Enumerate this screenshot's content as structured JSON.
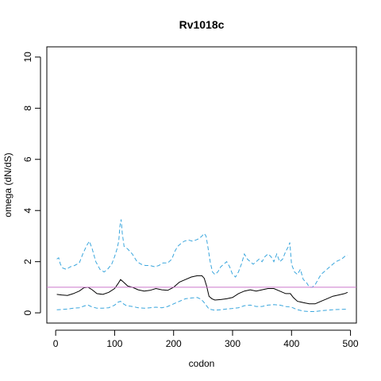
{
  "chart_data": {
    "type": "line",
    "title": "Rv1018c",
    "xlabel": "codon",
    "ylabel": "omega (dN/dS)",
    "xlim": [
      -15,
      510
    ],
    "ylim": [
      -0.4,
      10.4
    ],
    "xticks": [
      0,
      100,
      200,
      300,
      400,
      500
    ],
    "yticks": [
      0,
      2,
      4,
      6,
      8,
      10
    ],
    "grid": false,
    "legend": "none",
    "reference_line": {
      "y": 1,
      "color": "#cc77cc"
    },
    "series": [
      {
        "role": "upper",
        "color": "#3aa6dd",
        "dash": "dashed",
        "x": [
          2,
          5,
          8,
          12,
          18,
          25,
          32,
          40,
          46,
          52,
          57,
          62,
          68,
          75,
          82,
          88,
          95,
          100,
          104,
          107,
          109,
          111,
          113,
          116,
          122,
          130,
          138,
          145,
          152,
          160,
          168,
          175,
          182,
          190,
          197,
          202,
          207,
          212,
          218,
          225,
          232,
          238,
          243,
          248,
          252,
          255,
          258,
          262,
          266,
          270,
          275,
          280,
          285,
          290,
          295,
          300,
          305,
          310,
          315,
          320,
          325,
          330,
          335,
          340,
          345,
          350,
          355,
          360,
          365,
          370,
          375,
          380,
          385,
          390,
          395,
          397,
          400,
          405,
          410,
          415,
          420,
          425,
          430,
          435,
          440,
          445,
          450,
          455,
          460,
          465,
          470,
          475,
          480,
          485,
          490,
          495
        ],
        "y": [
          2.1,
          2.15,
          1.9,
          1.75,
          1.7,
          1.8,
          1.85,
          1.95,
          2.3,
          2.6,
          2.8,
          2.5,
          2.0,
          1.7,
          1.6,
          1.7,
          1.9,
          2.2,
          2.5,
          2.8,
          3.4,
          3.65,
          3.1,
          2.6,
          2.5,
          2.3,
          2.0,
          1.9,
          1.85,
          1.85,
          1.8,
          1.85,
          1.95,
          1.95,
          2.1,
          2.4,
          2.6,
          2.7,
          2.8,
          2.85,
          2.8,
          2.85,
          2.9,
          3.0,
          3.1,
          3.0,
          2.6,
          2.0,
          1.6,
          1.5,
          1.6,
          1.8,
          1.9,
          2.0,
          1.8,
          1.5,
          1.4,
          1.6,
          1.9,
          2.3,
          2.1,
          2.0,
          1.9,
          2.0,
          2.1,
          2.0,
          2.2,
          2.3,
          2.2,
          2.0,
          2.3,
          2.0,
          2.1,
          2.4,
          2.6,
          2.75,
          1.9,
          1.6,
          1.5,
          1.7,
          1.3,
          1.2,
          1.0,
          1.0,
          1.1,
          1.3,
          1.5,
          1.6,
          1.7,
          1.8,
          1.9,
          2.0,
          2.05,
          2.1,
          2.2,
          2.25
        ]
      },
      {
        "role": "estimate",
        "color": "#000000",
        "dash": "solid",
        "x": [
          2,
          10,
          20,
          30,
          40,
          48,
          55,
          62,
          70,
          80,
          90,
          100,
          106,
          110,
          115,
          122,
          130,
          140,
          150,
          160,
          170,
          180,
          190,
          200,
          210,
          220,
          230,
          240,
          248,
          252,
          256,
          260,
          265,
          270,
          280,
          290,
          300,
          310,
          320,
          330,
          340,
          350,
          360,
          370,
          380,
          390,
          398,
          403,
          410,
          420,
          430,
          440,
          450,
          460,
          470,
          480,
          490,
          495
        ],
        "y": [
          0.72,
          0.7,
          0.68,
          0.75,
          0.85,
          0.98,
          1.0,
          0.9,
          0.75,
          0.72,
          0.8,
          0.95,
          1.15,
          1.3,
          1.2,
          1.05,
          1.0,
          0.9,
          0.85,
          0.88,
          0.95,
          0.9,
          0.88,
          1.0,
          1.2,
          1.3,
          1.4,
          1.45,
          1.45,
          1.35,
          1.05,
          0.65,
          0.55,
          0.5,
          0.52,
          0.55,
          0.6,
          0.75,
          0.85,
          0.9,
          0.85,
          0.9,
          0.95,
          0.95,
          0.85,
          0.75,
          0.75,
          0.6,
          0.45,
          0.4,
          0.35,
          0.35,
          0.45,
          0.55,
          0.65,
          0.7,
          0.75,
          0.8
        ]
      },
      {
        "role": "lower",
        "color": "#3aa6dd",
        "dash": "dashed",
        "x": [
          2,
          10,
          20,
          30,
          40,
          50,
          55,
          60,
          70,
          80,
          90,
          100,
          106,
          110,
          115,
          120,
          130,
          140,
          150,
          160,
          170,
          180,
          190,
          200,
          210,
          220,
          230,
          240,
          245,
          250,
          255,
          260,
          270,
          280,
          290,
          300,
          310,
          320,
          330,
          340,
          350,
          360,
          370,
          380,
          390,
          400,
          410,
          420,
          430,
          440,
          450,
          460,
          470,
          480,
          490,
          495
        ],
        "y": [
          0.12,
          0.13,
          0.15,
          0.18,
          0.2,
          0.28,
          0.3,
          0.25,
          0.18,
          0.18,
          0.2,
          0.3,
          0.42,
          0.45,
          0.35,
          0.28,
          0.25,
          0.2,
          0.18,
          0.2,
          0.22,
          0.2,
          0.25,
          0.35,
          0.45,
          0.55,
          0.58,
          0.6,
          0.55,
          0.45,
          0.3,
          0.15,
          0.1,
          0.12,
          0.15,
          0.17,
          0.2,
          0.28,
          0.3,
          0.25,
          0.25,
          0.3,
          0.32,
          0.3,
          0.25,
          0.22,
          0.12,
          0.07,
          0.05,
          0.05,
          0.08,
          0.1,
          0.12,
          0.13,
          0.14,
          0.14
        ]
      }
    ]
  }
}
